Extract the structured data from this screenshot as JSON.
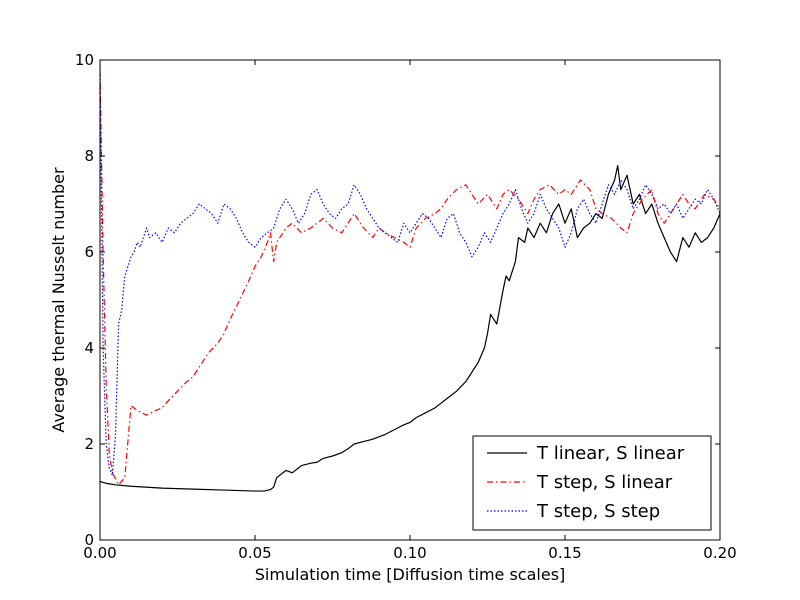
{
  "chart_data": {
    "type": "line",
    "title": "",
    "xlabel": "Simulation time [Diffusion time scales]",
    "ylabel": "Average thermal Nusselt number",
    "xlim": [
      0.0,
      0.2
    ],
    "ylim": [
      0,
      10
    ],
    "xticks": [
      "0.00",
      "0.05",
      "0.10",
      "0.15",
      "0.20"
    ],
    "xtick_values": [
      0.0,
      0.05,
      0.1,
      0.15,
      0.2
    ],
    "yticks": [
      "0",
      "2",
      "4",
      "6",
      "8",
      "10"
    ],
    "ytick_values": [
      0,
      2,
      4,
      6,
      8,
      10
    ],
    "grid": false,
    "legend_position": "bottom-right",
    "series": [
      {
        "name": "T linear, S linear",
        "color": "#000000",
        "dash": "solid",
        "x": [
          0.0,
          0.002,
          0.005,
          0.01,
          0.02,
          0.03,
          0.04,
          0.05,
          0.053,
          0.055,
          0.056,
          0.057,
          0.058,
          0.06,
          0.062,
          0.065,
          0.068,
          0.07,
          0.072,
          0.075,
          0.078,
          0.08,
          0.082,
          0.085,
          0.088,
          0.09,
          0.092,
          0.095,
          0.098,
          0.1,
          0.102,
          0.105,
          0.108,
          0.11,
          0.112,
          0.115,
          0.118,
          0.12,
          0.122,
          0.124,
          0.125,
          0.126,
          0.128,
          0.13,
          0.131,
          0.132,
          0.134,
          0.135,
          0.137,
          0.138,
          0.14,
          0.142,
          0.144,
          0.146,
          0.148,
          0.15,
          0.152,
          0.154,
          0.156,
          0.158,
          0.16,
          0.162,
          0.164,
          0.166,
          0.167,
          0.168,
          0.17,
          0.172,
          0.174,
          0.176,
          0.178,
          0.18,
          0.182,
          0.184,
          0.186,
          0.188,
          0.19,
          0.192,
          0.194,
          0.196,
          0.198,
          0.2
        ],
        "y": [
          1.22,
          1.18,
          1.15,
          1.12,
          1.08,
          1.06,
          1.04,
          1.02,
          1.02,
          1.05,
          1.1,
          1.3,
          1.35,
          1.45,
          1.4,
          1.55,
          1.6,
          1.62,
          1.7,
          1.75,
          1.82,
          1.9,
          2.0,
          2.05,
          2.1,
          2.15,
          2.2,
          2.3,
          2.4,
          2.45,
          2.55,
          2.65,
          2.75,
          2.85,
          2.95,
          3.1,
          3.3,
          3.5,
          3.7,
          4.0,
          4.3,
          4.7,
          4.5,
          5.2,
          5.5,
          5.4,
          5.8,
          6.3,
          6.2,
          6.5,
          6.3,
          6.6,
          6.4,
          6.8,
          7.0,
          6.6,
          6.9,
          6.3,
          6.5,
          6.6,
          6.8,
          6.7,
          7.2,
          7.5,
          7.8,
          7.3,
          7.6,
          7.0,
          7.2,
          6.8,
          7.0,
          6.6,
          6.3,
          6.0,
          5.8,
          6.3,
          6.1,
          6.4,
          6.2,
          6.3,
          6.5,
          6.8
        ]
      },
      {
        "name": "T step, S linear",
        "color": "#ff0000",
        "dash": "dashdot",
        "x": [
          0.0,
          0.001,
          0.002,
          0.003,
          0.004,
          0.006,
          0.008,
          0.01,
          0.012,
          0.015,
          0.018,
          0.02,
          0.022,
          0.025,
          0.028,
          0.03,
          0.032,
          0.035,
          0.038,
          0.04,
          0.042,
          0.045,
          0.048,
          0.05,
          0.052,
          0.054,
          0.055,
          0.056,
          0.057,
          0.058,
          0.06,
          0.062,
          0.065,
          0.068,
          0.07,
          0.072,
          0.075,
          0.078,
          0.08,
          0.082,
          0.085,
          0.088,
          0.09,
          0.092,
          0.095,
          0.098,
          0.1,
          0.102,
          0.105,
          0.108,
          0.11,
          0.112,
          0.115,
          0.118,
          0.12,
          0.122,
          0.125,
          0.128,
          0.13,
          0.132,
          0.135,
          0.138,
          0.14,
          0.142,
          0.145,
          0.148,
          0.15,
          0.152,
          0.155,
          0.158,
          0.16,
          0.162,
          0.165,
          0.168,
          0.17,
          0.172,
          0.175,
          0.178,
          0.18,
          0.182,
          0.185,
          0.188,
          0.19,
          0.192,
          0.195,
          0.198,
          0.2
        ],
        "y": [
          9.8,
          6.0,
          3.2,
          1.8,
          1.4,
          1.15,
          1.3,
          2.8,
          2.7,
          2.6,
          2.7,
          2.75,
          2.9,
          3.1,
          3.3,
          3.4,
          3.6,
          3.9,
          4.1,
          4.3,
          4.6,
          5.0,
          5.4,
          5.7,
          5.9,
          6.2,
          6.4,
          5.8,
          6.2,
          6.3,
          6.5,
          6.6,
          6.4,
          6.5,
          6.6,
          6.7,
          6.5,
          6.4,
          6.6,
          6.8,
          6.5,
          6.3,
          6.5,
          6.4,
          6.3,
          6.2,
          6.1,
          6.5,
          6.7,
          6.8,
          6.9,
          7.1,
          7.3,
          7.4,
          7.2,
          7.0,
          7.2,
          6.9,
          7.2,
          7.3,
          7.1,
          6.8,
          7.1,
          7.3,
          7.4,
          7.2,
          7.3,
          7.2,
          7.5,
          7.3,
          6.9,
          6.8,
          6.7,
          6.5,
          6.4,
          6.8,
          7.1,
          7.3,
          6.8,
          6.6,
          6.9,
          7.2,
          7.0,
          6.9,
          7.2,
          7.1,
          6.9
        ]
      },
      {
        "name": "T step, S step",
        "color": "#0000ff",
        "dash": "dotted",
        "x": [
          0.0,
          0.001,
          0.002,
          0.003,
          0.004,
          0.005,
          0.006,
          0.007,
          0.008,
          0.009,
          0.01,
          0.011,
          0.012,
          0.013,
          0.014,
          0.015,
          0.016,
          0.018,
          0.02,
          0.022,
          0.024,
          0.026,
          0.028,
          0.03,
          0.032,
          0.034,
          0.036,
          0.038,
          0.04,
          0.042,
          0.044,
          0.046,
          0.048,
          0.05,
          0.052,
          0.054,
          0.056,
          0.058,
          0.06,
          0.062,
          0.064,
          0.066,
          0.068,
          0.07,
          0.072,
          0.074,
          0.076,
          0.078,
          0.08,
          0.082,
          0.084,
          0.086,
          0.088,
          0.09,
          0.092,
          0.094,
          0.096,
          0.098,
          0.1,
          0.102,
          0.104,
          0.106,
          0.108,
          0.11,
          0.112,
          0.114,
          0.116,
          0.118,
          0.12,
          0.122,
          0.124,
          0.126,
          0.128,
          0.13,
          0.132,
          0.134,
          0.136,
          0.138,
          0.14,
          0.142,
          0.144,
          0.146,
          0.148,
          0.15,
          0.152,
          0.154,
          0.156,
          0.158,
          0.16,
          0.162,
          0.164,
          0.166,
          0.168,
          0.17,
          0.172,
          0.174,
          0.176,
          0.178,
          0.18,
          0.182,
          0.184,
          0.186,
          0.188,
          0.19,
          0.192,
          0.194,
          0.196,
          0.198,
          0.2
        ],
        "y": [
          9.9,
          4.0,
          2.0,
          1.5,
          1.35,
          2.2,
          4.5,
          4.8,
          5.5,
          5.7,
          5.9,
          6.0,
          6.2,
          6.1,
          6.3,
          6.5,
          6.3,
          6.4,
          6.2,
          6.5,
          6.4,
          6.6,
          6.7,
          6.8,
          7.0,
          6.9,
          6.8,
          6.6,
          7.0,
          6.9,
          6.7,
          6.4,
          6.2,
          6.1,
          6.3,
          6.4,
          6.5,
          6.9,
          7.1,
          6.9,
          6.6,
          6.8,
          7.2,
          7.3,
          7.0,
          6.8,
          6.7,
          6.9,
          7.0,
          7.4,
          7.2,
          6.9,
          6.7,
          6.5,
          6.4,
          6.3,
          6.2,
          6.6,
          6.4,
          6.6,
          6.8,
          6.7,
          6.5,
          6.3,
          6.7,
          6.8,
          6.4,
          6.2,
          5.9,
          6.1,
          6.4,
          6.2,
          6.5,
          6.8,
          7.0,
          7.3,
          6.9,
          6.6,
          6.8,
          7.2,
          6.9,
          6.7,
          6.5,
          6.1,
          6.4,
          6.9,
          7.1,
          6.8,
          6.6,
          7.0,
          7.4,
          7.2,
          7.5,
          7.3,
          6.9,
          7.1,
          7.4,
          7.2,
          6.9,
          7.0,
          6.8,
          7.0,
          6.7,
          6.9,
          7.1,
          7.0,
          7.3,
          7.1,
          6.8
        ]
      }
    ]
  }
}
